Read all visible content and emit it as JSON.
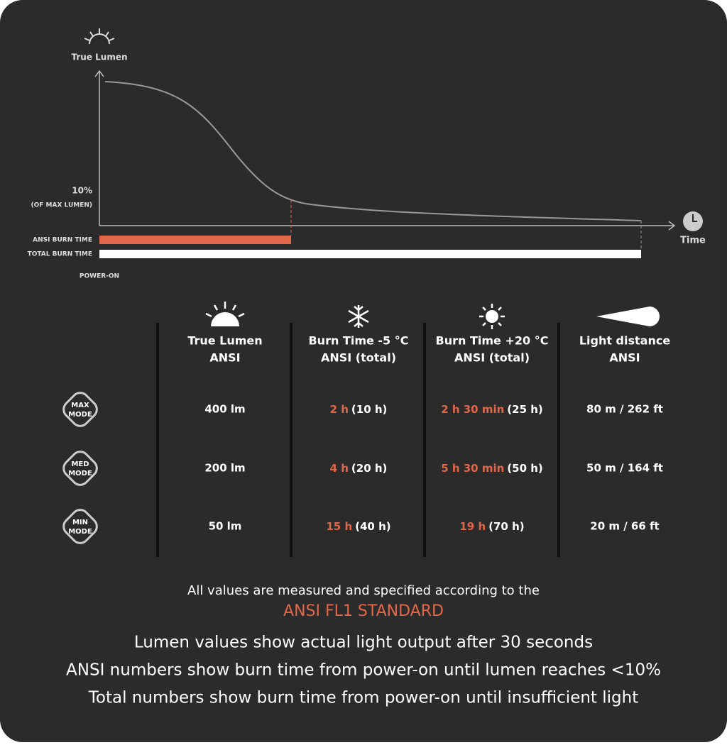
{
  "diagram": {
    "y_label": "True Lumen",
    "threshold_label": "10%",
    "threshold_sub": "(OF MAX LUMEN)",
    "x_label": "Time",
    "bars": [
      "ANSI BURN TIME",
      "TOTAL BURN TIME"
    ],
    "origin_label": "POWER-ON"
  },
  "table": {
    "columns": [
      [
        "True Lumen",
        "ANSI"
      ],
      [
        "Burn Time -5 °C",
        "ANSI  (total)"
      ],
      [
        "Burn Time +20 °C",
        "ANSI  (total)"
      ],
      [
        "Light distance",
        "ANSI"
      ]
    ],
    "rows": [
      {
        "mode": [
          "MAX",
          "MODE"
        ],
        "lumen": "400 lm",
        "cold": {
          "ansi": "2 h",
          "total": "(10 h)"
        },
        "warm": {
          "ansi": "2 h 30 min",
          "total": "(25 h)"
        },
        "distance": "80 m / 262 ft"
      },
      {
        "mode": [
          "MED",
          "MODE"
        ],
        "lumen": "200 lm",
        "cold": {
          "ansi": "4 h",
          "total": "(20 h)"
        },
        "warm": {
          "ansi": "5 h 30 min",
          "total": "(50 h)"
        },
        "distance": "50 m / 164 ft"
      },
      {
        "mode": [
          "MIN",
          "MODE"
        ],
        "lumen": "50 lm",
        "cold": {
          "ansi": "15 h",
          "total": "(40 h)"
        },
        "warm": {
          "ansi": "19 h",
          "total": "(70 h)"
        },
        "distance": "20 m / 66 ft"
      }
    ]
  },
  "footer": {
    "note": "All values are measured and specified according to the",
    "standard": "ANSI FL1 STANDARD",
    "lines": [
      "Lumen values show actual light output after 30 seconds",
      "ANSI numbers show burn time from power-on until lumen reaches <10%",
      "Total numbers show burn time from power-on until insufficient light"
    ]
  }
}
